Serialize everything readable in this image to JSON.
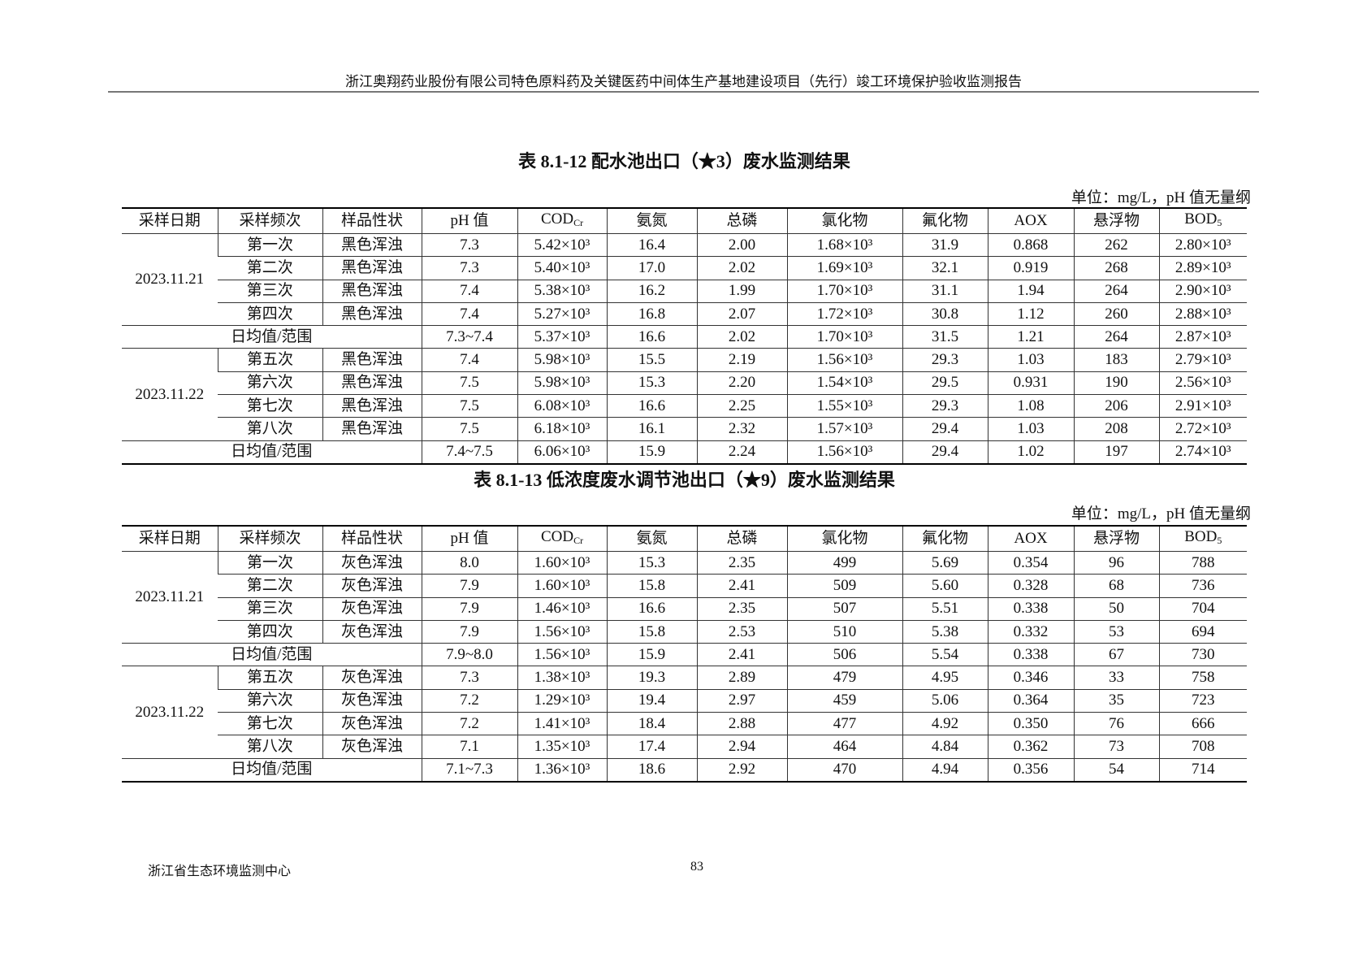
{
  "running_header": "浙江奥翔药业股份有限公司特色原料药及关键医药中间体生产基地建设项目（先行）竣工环境保护验收监测报告",
  "columns": [
    {
      "text": "采样日期"
    },
    {
      "text": "采样频次"
    },
    {
      "text": "样品性状"
    },
    {
      "text": "pH 值"
    },
    {
      "text": "COD",
      "sub": "Cr"
    },
    {
      "text": "氨氮"
    },
    {
      "text": "总磷"
    },
    {
      "text": "氯化物"
    },
    {
      "text": "氟化物"
    },
    {
      "text": "AOX"
    },
    {
      "text": "悬浮物"
    },
    {
      "text": "BOD",
      "sub": "5"
    }
  ],
  "summary_label": "日均值/范围",
  "tables": [
    {
      "caption": "表 8.1-12  配水池出口（★3）废水监测结果",
      "unit": "单位：mg/L，pH 值无量纲",
      "groups": [
        {
          "date": "2023.11.21",
          "rows": [
            [
              "第一次",
              "黑色浑浊",
              "7.3",
              "5.42×10³",
              "16.4",
              "2.00",
              "1.68×10³",
              "31.9",
              "0.868",
              "262",
              "2.80×10³"
            ],
            [
              "第二次",
              "黑色浑浊",
              "7.3",
              "5.40×10³",
              "17.0",
              "2.02",
              "1.69×10³",
              "32.1",
              "0.919",
              "268",
              "2.89×10³"
            ],
            [
              "第三次",
              "黑色浑浊",
              "7.4",
              "5.38×10³",
              "16.2",
              "1.99",
              "1.70×10³",
              "31.1",
              "1.94",
              "264",
              "2.90×10³"
            ],
            [
              "第四次",
              "黑色浑浊",
              "7.4",
              "5.27×10³",
              "16.8",
              "2.07",
              "1.72×10³",
              "30.8",
              "1.12",
              "260",
              "2.88×10³"
            ]
          ],
          "summary": [
            "7.3~7.4",
            "5.37×10³",
            "16.6",
            "2.02",
            "1.70×10³",
            "31.5",
            "1.21",
            "264",
            "2.87×10³"
          ]
        },
        {
          "date": "2023.11.22",
          "rows": [
            [
              "第五次",
              "黑色浑浊",
              "7.4",
              "5.98×10³",
              "15.5",
              "2.19",
              "1.56×10³",
              "29.3",
              "1.03",
              "183",
              "2.79×10³"
            ],
            [
              "第六次",
              "黑色浑浊",
              "7.5",
              "5.98×10³",
              "15.3",
              "2.20",
              "1.54×10³",
              "29.5",
              "0.931",
              "190",
              "2.56×10³"
            ],
            [
              "第七次",
              "黑色浑浊",
              "7.5",
              "6.08×10³",
              "16.6",
              "2.25",
              "1.55×10³",
              "29.3",
              "1.08",
              "206",
              "2.91×10³"
            ],
            [
              "第八次",
              "黑色浑浊",
              "7.5",
              "6.18×10³",
              "16.1",
              "2.32",
              "1.57×10³",
              "29.4",
              "1.03",
              "208",
              "2.72×10³"
            ]
          ],
          "summary": [
            "7.4~7.5",
            "6.06×10³",
            "15.9",
            "2.24",
            "1.56×10³",
            "29.4",
            "1.02",
            "197",
            "2.74×10³"
          ]
        }
      ]
    },
    {
      "caption": "表 8.1-13  低浓度废水调节池出口（★9）废水监测结果",
      "unit": "单位：mg/L，pH 值无量纲",
      "groups": [
        {
          "date": "2023.11.21",
          "rows": [
            [
              "第一次",
              "灰色浑浊",
              "8.0",
              "1.60×10³",
              "15.3",
              "2.35",
              "499",
              "5.69",
              "0.354",
              "96",
              "788"
            ],
            [
              "第二次",
              "灰色浑浊",
              "7.9",
              "1.60×10³",
              "15.8",
              "2.41",
              "509",
              "5.60",
              "0.328",
              "68",
              "736"
            ],
            [
              "第三次",
              "灰色浑浊",
              "7.9",
              "1.46×10³",
              "16.6",
              "2.35",
              "507",
              "5.51",
              "0.338",
              "50",
              "704"
            ],
            [
              "第四次",
              "灰色浑浊",
              "7.9",
              "1.56×10³",
              "15.8",
              "2.53",
              "510",
              "5.38",
              "0.332",
              "53",
              "694"
            ]
          ],
          "summary": [
            "7.9~8.0",
            "1.56×10³",
            "15.9",
            "2.41",
            "506",
            "5.54",
            "0.338",
            "67",
            "730"
          ]
        },
        {
          "date": "2023.11.22",
          "rows": [
            [
              "第五次",
              "灰色浑浊",
              "7.3",
              "1.38×10³",
              "19.3",
              "2.89",
              "479",
              "4.95",
              "0.346",
              "33",
              "758"
            ],
            [
              "第六次",
              "灰色浑浊",
              "7.2",
              "1.29×10³",
              "19.4",
              "2.97",
              "459",
              "5.06",
              "0.364",
              "35",
              "723"
            ],
            [
              "第七次",
              "灰色浑浊",
              "7.2",
              "1.41×10³",
              "18.4",
              "2.88",
              "477",
              "4.92",
              "0.350",
              "76",
              "666"
            ],
            [
              "第八次",
              "灰色浑浊",
              "7.1",
              "1.35×10³",
              "17.4",
              "2.94",
              "464",
              "4.84",
              "0.362",
              "73",
              "708"
            ]
          ],
          "summary": [
            "7.1~7.3",
            "1.36×10³",
            "18.6",
            "2.92",
            "470",
            "4.94",
            "0.356",
            "54",
            "714"
          ]
        }
      ]
    }
  ],
  "footer": {
    "organization": "浙江省生态环境监测中心",
    "page_number": "83"
  }
}
